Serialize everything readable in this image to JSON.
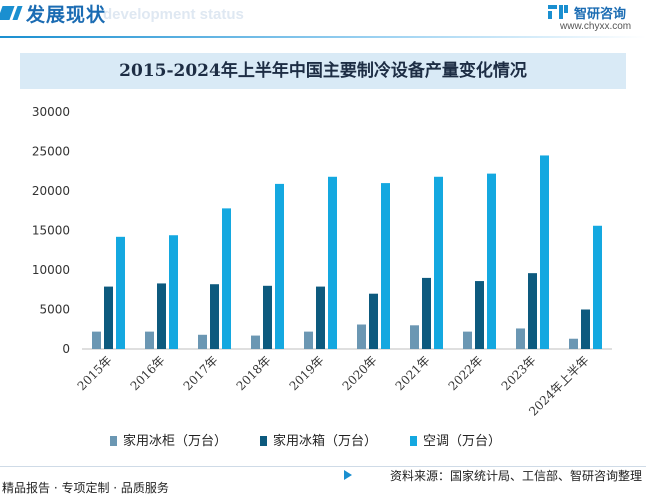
{
  "header": {
    "title": "发展现状",
    "subtitle_en": "development status"
  },
  "brand": {
    "name": "智研咨询",
    "url": "www.chyxx.com"
  },
  "footer": {
    "left": "精品报告 · 专项定制 · 品质服务",
    "source": "资料来源：国家统计局、工信部、智研咨询整理"
  },
  "colors": {
    "accent": "#1a8fd0",
    "series": [
      "#6b97b3",
      "#0d5a7e",
      "#14a8e0"
    ]
  },
  "chart_data": {
    "type": "bar",
    "title": "2015-2024年上半年中国主要制冷设备产量变化情况",
    "categories": [
      "2015年",
      "2016年",
      "2017年",
      "2018年",
      "2019年",
      "2020年",
      "2021年",
      "2022年",
      "2023年",
      "2024年上半年"
    ],
    "series": [
      {
        "name": "家用冰柜（万台）",
        "values": [
          2200,
          2200,
          1800,
          1700,
          2200,
          3100,
          3000,
          2200,
          2600,
          1300
        ]
      },
      {
        "name": "家用冰箱（万台）",
        "values": [
          7900,
          8300,
          8200,
          8000,
          7900,
          7000,
          9000,
          8600,
          9600,
          5000
        ]
      },
      {
        "name": "空调（万台）",
        "values": [
          14200,
          14400,
          17800,
          20900,
          21800,
          21000,
          21800,
          22200,
          24500,
          15600
        ]
      }
    ],
    "yticks": [
      "0",
      "5000",
      "10000",
      "15000",
      "20000",
      "25000",
      "30000"
    ],
    "ylim": [
      0,
      30000
    ],
    "xlabel": "",
    "ylabel": "",
    "grid": false,
    "legend_position": "bottom"
  }
}
